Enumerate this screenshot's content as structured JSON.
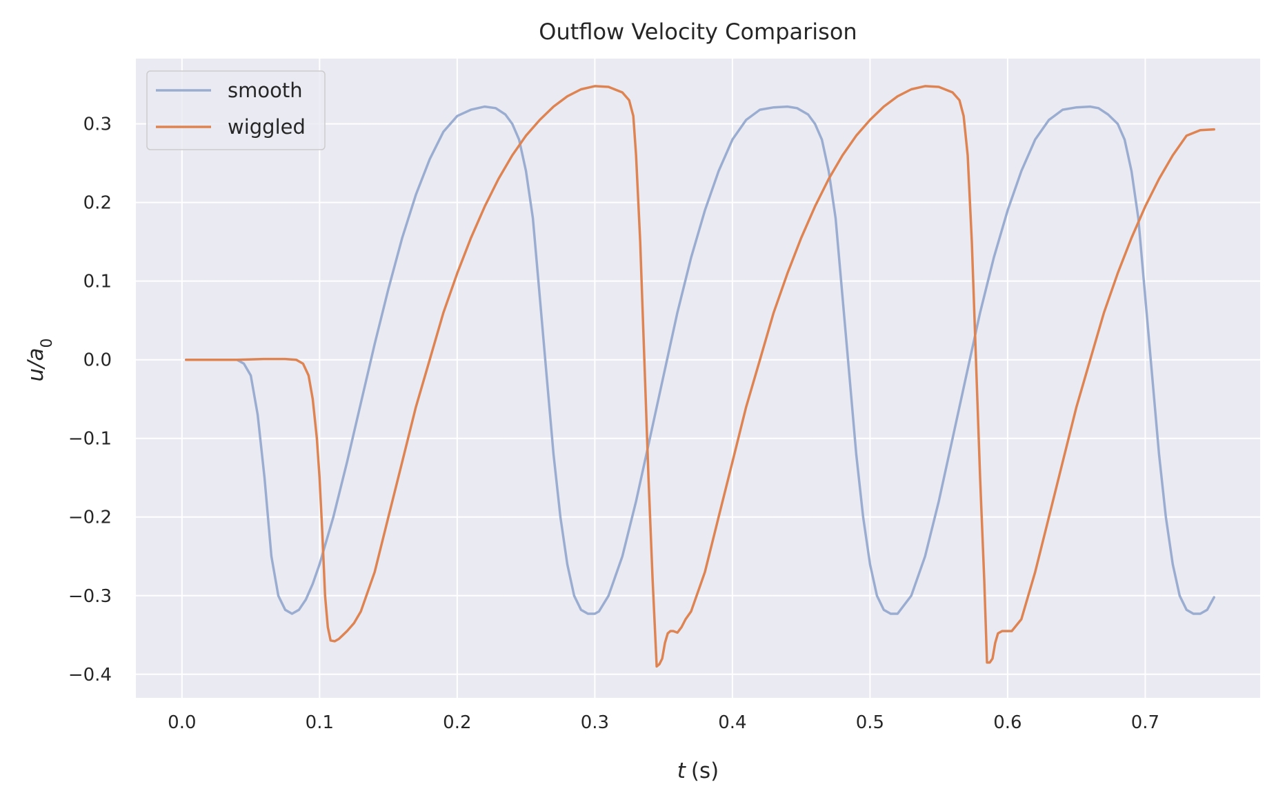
{
  "chart_data": {
    "type": "line",
    "title": "Outflow Velocity Comparison",
    "xlabel": "t (s)",
    "xlabel_var": "t",
    "xlabel_unit": "(s)",
    "ylabel": "u/a0",
    "ylabel_main": "u/a",
    "ylabel_sub": "0",
    "xlim": [
      -0.0335,
      0.7835
    ],
    "ylim": [
      -0.43,
      0.383
    ],
    "xticks": [
      0.0,
      0.1,
      0.2,
      0.3,
      0.4,
      0.5,
      0.6,
      0.7
    ],
    "xtick_labels": [
      "0.0",
      "0.1",
      "0.2",
      "0.3",
      "0.4",
      "0.5",
      "0.6",
      "0.7"
    ],
    "yticks": [
      -0.4,
      -0.3,
      -0.2,
      -0.1,
      0.0,
      0.1,
      0.2,
      0.3
    ],
    "ytick_labels": [
      "−0.4",
      "−0.3",
      "−0.2",
      "−0.1",
      "0.0",
      "0.1",
      "0.2",
      "0.3"
    ],
    "grid": true,
    "legend_position": "upper-left",
    "series": [
      {
        "name": "smooth",
        "color": "#9aadd0",
        "x": [
          0.003,
          0.02,
          0.04,
          0.045,
          0.05,
          0.055,
          0.06,
          0.065,
          0.07,
          0.075,
          0.08,
          0.085,
          0.09,
          0.095,
          0.1,
          0.11,
          0.12,
          0.13,
          0.14,
          0.15,
          0.16,
          0.17,
          0.18,
          0.19,
          0.2,
          0.21,
          0.22,
          0.228,
          0.235,
          0.24,
          0.245,
          0.25,
          0.255,
          0.26,
          0.265,
          0.27,
          0.275,
          0.28,
          0.285,
          0.29,
          0.295,
          0.3,
          0.303,
          0.31,
          0.32,
          0.33,
          0.34,
          0.35,
          0.36,
          0.37,
          0.38,
          0.39,
          0.4,
          0.41,
          0.42,
          0.43,
          0.44,
          0.447,
          0.455,
          0.46,
          0.465,
          0.47,
          0.475,
          0.48,
          0.485,
          0.49,
          0.495,
          0.5,
          0.505,
          0.51,
          0.515,
          0.52,
          0.53,
          0.54,
          0.55,
          0.56,
          0.57,
          0.58,
          0.59,
          0.6,
          0.61,
          0.62,
          0.63,
          0.64,
          0.65,
          0.66,
          0.666,
          0.673,
          0.68,
          0.685,
          0.69,
          0.695,
          0.7,
          0.705,
          0.71,
          0.715,
          0.72,
          0.725,
          0.73,
          0.735,
          0.74,
          0.745,
          0.75
        ],
        "y": [
          0.0,
          0.0,
          0.0,
          -0.005,
          -0.02,
          -0.07,
          -0.15,
          -0.25,
          -0.3,
          -0.318,
          -0.323,
          -0.318,
          -0.305,
          -0.285,
          -0.26,
          -0.2,
          -0.13,
          -0.055,
          0.02,
          0.09,
          0.155,
          0.21,
          0.255,
          0.29,
          0.31,
          0.318,
          0.322,
          0.32,
          0.312,
          0.3,
          0.28,
          0.24,
          0.18,
          0.08,
          -0.02,
          -0.12,
          -0.2,
          -0.26,
          -0.3,
          -0.318,
          -0.323,
          -0.323,
          -0.32,
          -0.3,
          -0.25,
          -0.18,
          -0.1,
          -0.02,
          0.06,
          0.13,
          0.19,
          0.24,
          0.28,
          0.305,
          0.318,
          0.321,
          0.322,
          0.32,
          0.312,
          0.3,
          0.28,
          0.24,
          0.18,
          0.08,
          -0.02,
          -0.12,
          -0.2,
          -0.26,
          -0.3,
          -0.318,
          -0.323,
          -0.323,
          -0.3,
          -0.25,
          -0.18,
          -0.1,
          -0.02,
          0.06,
          0.13,
          0.19,
          0.24,
          0.28,
          0.305,
          0.318,
          0.321,
          0.322,
          0.32,
          0.312,
          0.3,
          0.28,
          0.24,
          0.18,
          0.08,
          -0.02,
          -0.12,
          -0.2,
          -0.26,
          -0.3,
          -0.318,
          -0.323,
          -0.323,
          -0.318,
          -0.302
        ]
      },
      {
        "name": "wiggled",
        "color": "#dd8452",
        "x": [
          0.003,
          0.02,
          0.04,
          0.06,
          0.075,
          0.083,
          0.088,
          0.092,
          0.095,
          0.098,
          0.1,
          0.102,
          0.104,
          0.106,
          0.108,
          0.111,
          0.114,
          0.117,
          0.12,
          0.125,
          0.13,
          0.14,
          0.15,
          0.16,
          0.17,
          0.18,
          0.19,
          0.2,
          0.21,
          0.22,
          0.23,
          0.24,
          0.25,
          0.26,
          0.27,
          0.28,
          0.29,
          0.3,
          0.31,
          0.32,
          0.325,
          0.328,
          0.33,
          0.333,
          0.336,
          0.339,
          0.342,
          0.345,
          0.347,
          0.349,
          0.351,
          0.353,
          0.355,
          0.357,
          0.36,
          0.363,
          0.366,
          0.37,
          0.38,
          0.39,
          0.4,
          0.41,
          0.42,
          0.43,
          0.44,
          0.45,
          0.46,
          0.47,
          0.48,
          0.49,
          0.5,
          0.51,
          0.52,
          0.53,
          0.54,
          0.55,
          0.56,
          0.565,
          0.568,
          0.571,
          0.574,
          0.577,
          0.58,
          0.583,
          0.585,
          0.587,
          0.589,
          0.591,
          0.593,
          0.596,
          0.6,
          0.603,
          0.61,
          0.62,
          0.63,
          0.64,
          0.65,
          0.66,
          0.67,
          0.68,
          0.69,
          0.7,
          0.71,
          0.72,
          0.73,
          0.74,
          0.75
        ],
        "y": [
          0.0,
          0.0,
          0.0,
          0.001,
          0.001,
          0.0,
          -0.005,
          -0.02,
          -0.05,
          -0.1,
          -0.15,
          -0.22,
          -0.3,
          -0.34,
          -0.357,
          -0.358,
          -0.355,
          -0.35,
          -0.345,
          -0.335,
          -0.32,
          -0.27,
          -0.2,
          -0.13,
          -0.06,
          0.0,
          0.06,
          0.11,
          0.155,
          0.195,
          0.23,
          0.26,
          0.285,
          0.305,
          0.322,
          0.335,
          0.344,
          0.348,
          0.347,
          0.34,
          0.33,
          0.31,
          0.26,
          0.15,
          0.0,
          -0.15,
          -0.28,
          -0.39,
          -0.387,
          -0.38,
          -0.36,
          -0.348,
          -0.345,
          -0.345,
          -0.347,
          -0.34,
          -0.33,
          -0.32,
          -0.27,
          -0.2,
          -0.13,
          -0.06,
          0.0,
          0.06,
          0.11,
          0.155,
          0.195,
          0.23,
          0.26,
          0.285,
          0.305,
          0.322,
          0.335,
          0.344,
          0.348,
          0.347,
          0.34,
          0.33,
          0.31,
          0.26,
          0.15,
          0.0,
          -0.15,
          -0.28,
          -0.385,
          -0.385,
          -0.38,
          -0.36,
          -0.348,
          -0.345,
          -0.345,
          -0.345,
          -0.33,
          -0.27,
          -0.2,
          -0.13,
          -0.06,
          0.0,
          0.06,
          0.11,
          0.155,
          0.195,
          0.23,
          0.26,
          0.285,
          0.292,
          0.293
        ]
      }
    ]
  }
}
